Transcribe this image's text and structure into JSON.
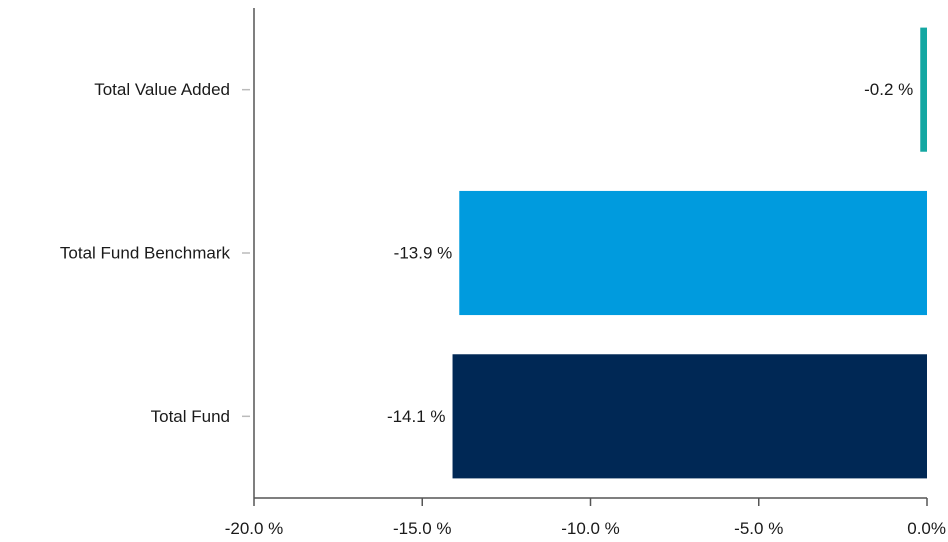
{
  "chart_data": {
    "type": "bar",
    "orientation": "horizontal",
    "categories": [
      "Total Value Added",
      "Total Fund Benchmark",
      "Total Fund"
    ],
    "values": [
      -0.2,
      -13.9,
      -14.1
    ],
    "data_labels": [
      "-0.2 %",
      "-13.9 %",
      "-14.1 %"
    ],
    "colors": [
      "#14a7a2",
      "#009bde",
      "#002855"
    ],
    "xlim": [
      -20.0,
      0.0
    ],
    "x_ticks": [
      -20.0,
      -15.0,
      -10.0,
      -5.0,
      0.0
    ],
    "x_tick_labels": [
      "-20.0 %",
      "-15.0 %",
      "-10.0 %",
      "-5.0 %",
      "0.0%"
    ],
    "title": "",
    "xlabel": "",
    "ylabel": "",
    "grid": false,
    "legend": "none"
  }
}
